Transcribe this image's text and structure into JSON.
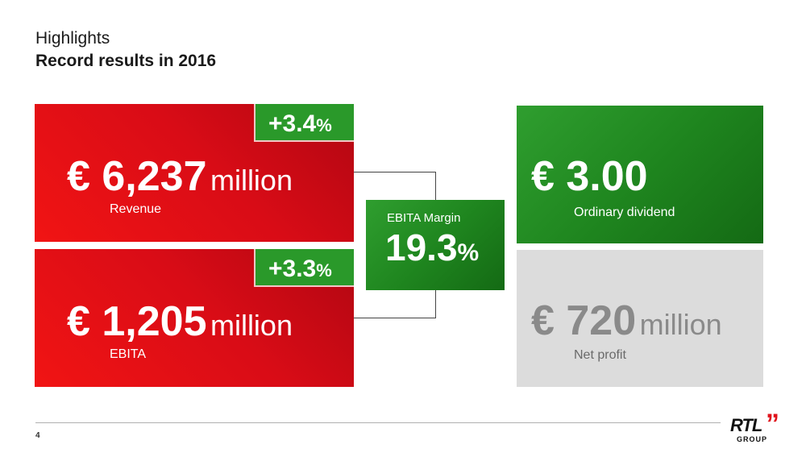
{
  "header": {
    "title": "Highlights",
    "subtitle": "Record results in 2016"
  },
  "revenue": {
    "value": "€ 6,237",
    "unit": "million",
    "label": "Revenue",
    "growth_value": "+3.4",
    "growth_unit": "%"
  },
  "ebita": {
    "value": "€ 1,205",
    "unit": "million",
    "label": "EBITA",
    "growth_value": "+3.3",
    "growth_unit": "%"
  },
  "margin": {
    "label": "EBITA Margin",
    "value": "19.3",
    "unit": "%"
  },
  "dividend": {
    "value": "€ 3.00",
    "label": "Ordinary dividend"
  },
  "net_profit": {
    "value": "€ 720",
    "unit": "million",
    "label": "Net profit"
  },
  "footer": {
    "page_number": "4"
  },
  "logo": {
    "brand": "RTL",
    "quote": "”",
    "group": "GROUP"
  },
  "colors": {
    "red": "#d90c16",
    "green": "#2a992a",
    "grey": "#dcdcdc"
  }
}
